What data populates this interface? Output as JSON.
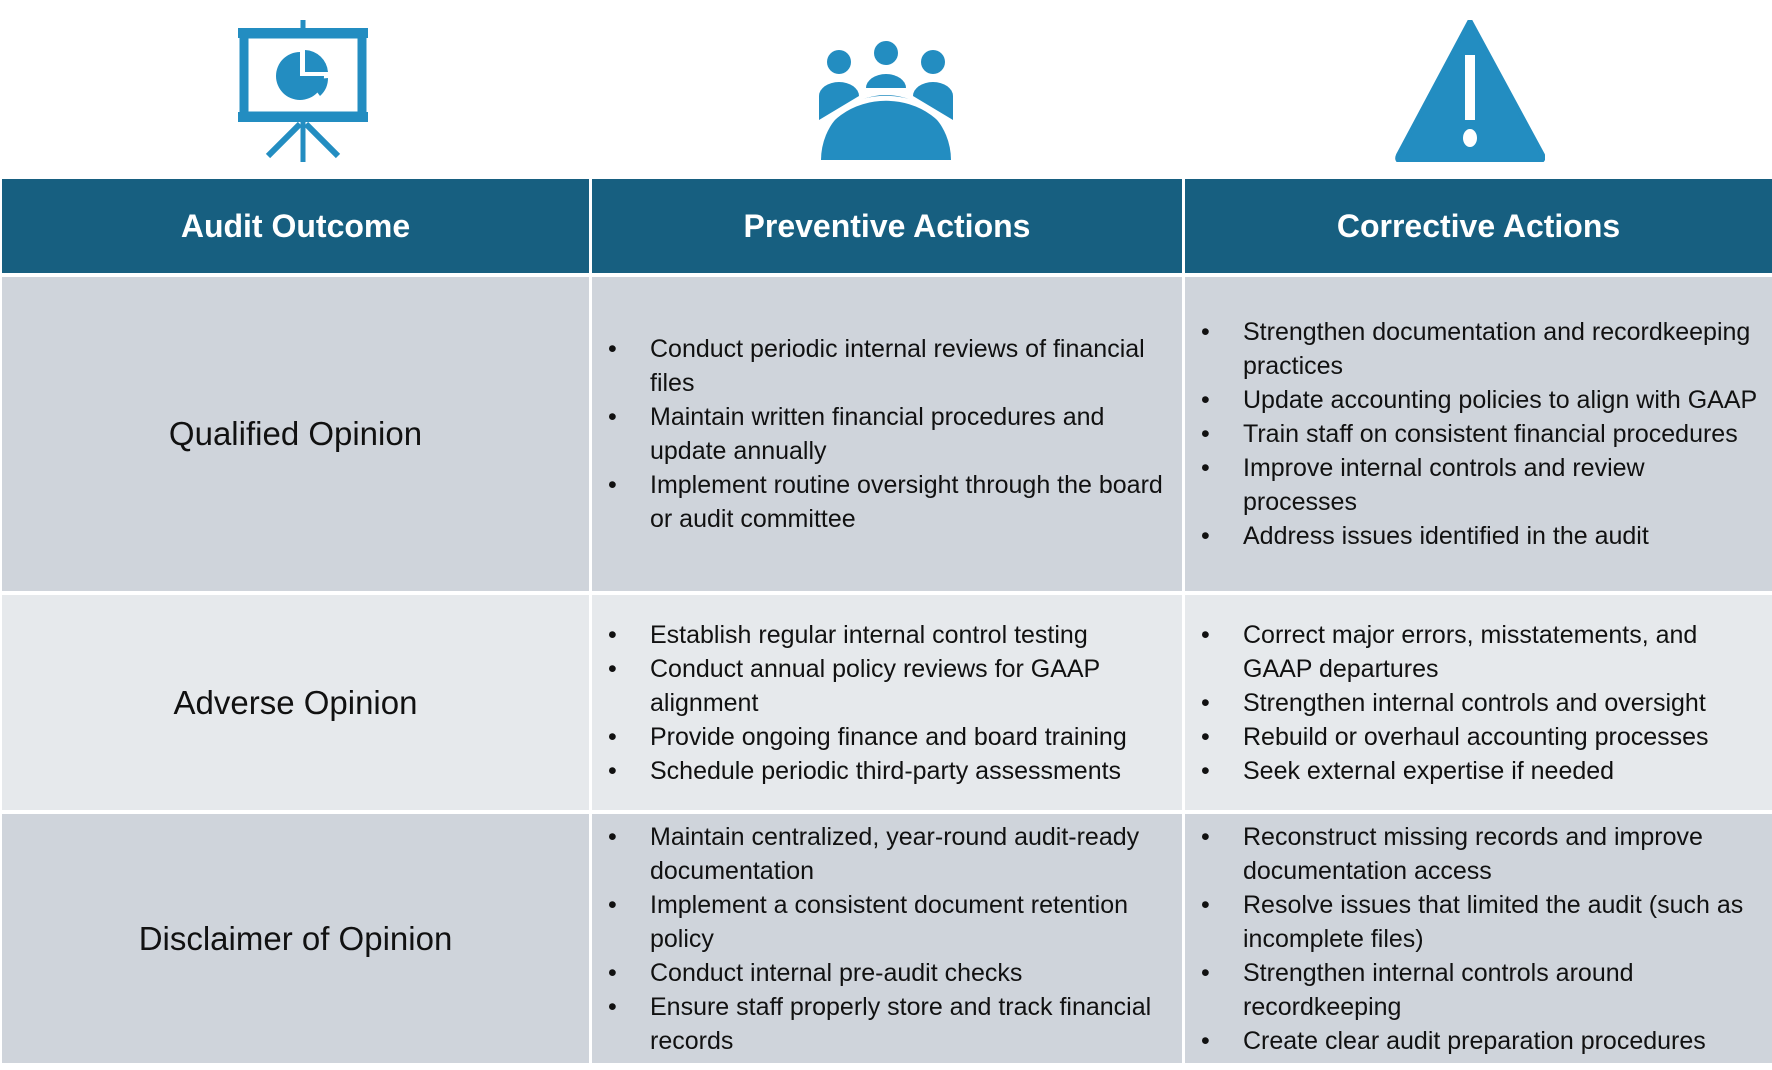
{
  "colors": {
    "header": "#175f80",
    "icon": "#238dc1",
    "row_dark": "#cfd4db",
    "row_light": "#e6e9ec"
  },
  "icons": [
    "presentation-chart-icon",
    "meeting-group-icon",
    "warning-icon"
  ],
  "headers": [
    "Audit Outcome",
    "Preventive Actions",
    "Corrective Actions"
  ],
  "rows": [
    {
      "outcome": "Qualified Opinion",
      "preventive": [
        "Conduct periodic internal reviews of financial files",
        "Maintain written financial procedures and update annually",
        "Implement routine oversight through the board or audit committee"
      ],
      "corrective": [
        "Strengthen documentation and recordkeeping practices",
        "Update accounting policies to align with GAAP",
        "Train staff on consistent financial procedures",
        "Improve internal controls and review processes",
        "Address issues identified in the audit"
      ]
    },
    {
      "outcome": "Adverse Opinion",
      "preventive": [
        "Establish regular internal control testing",
        "Conduct annual policy reviews for GAAP alignment",
        "Provide ongoing finance and board training",
        "Schedule periodic third-party assessments"
      ],
      "corrective": [
        "Correct major errors, misstatements, and GAAP departures",
        "Strengthen internal controls and oversight",
        "Rebuild or overhaul accounting processes",
        "Seek external expertise if needed"
      ]
    },
    {
      "outcome": "Disclaimer of Opinion",
      "preventive": [
        "Maintain centralized, year-round audit-ready documentation",
        "Implement a consistent document retention policy",
        "Conduct internal pre-audit checks",
        "Ensure staff properly store and track financial records"
      ],
      "corrective": [
        "Reconstruct missing records and improve documentation access",
        "Resolve issues that limited the audit (such as incomplete files)",
        "Strengthen internal controls around recordkeeping",
        "Create clear audit preparation procedures"
      ]
    }
  ]
}
